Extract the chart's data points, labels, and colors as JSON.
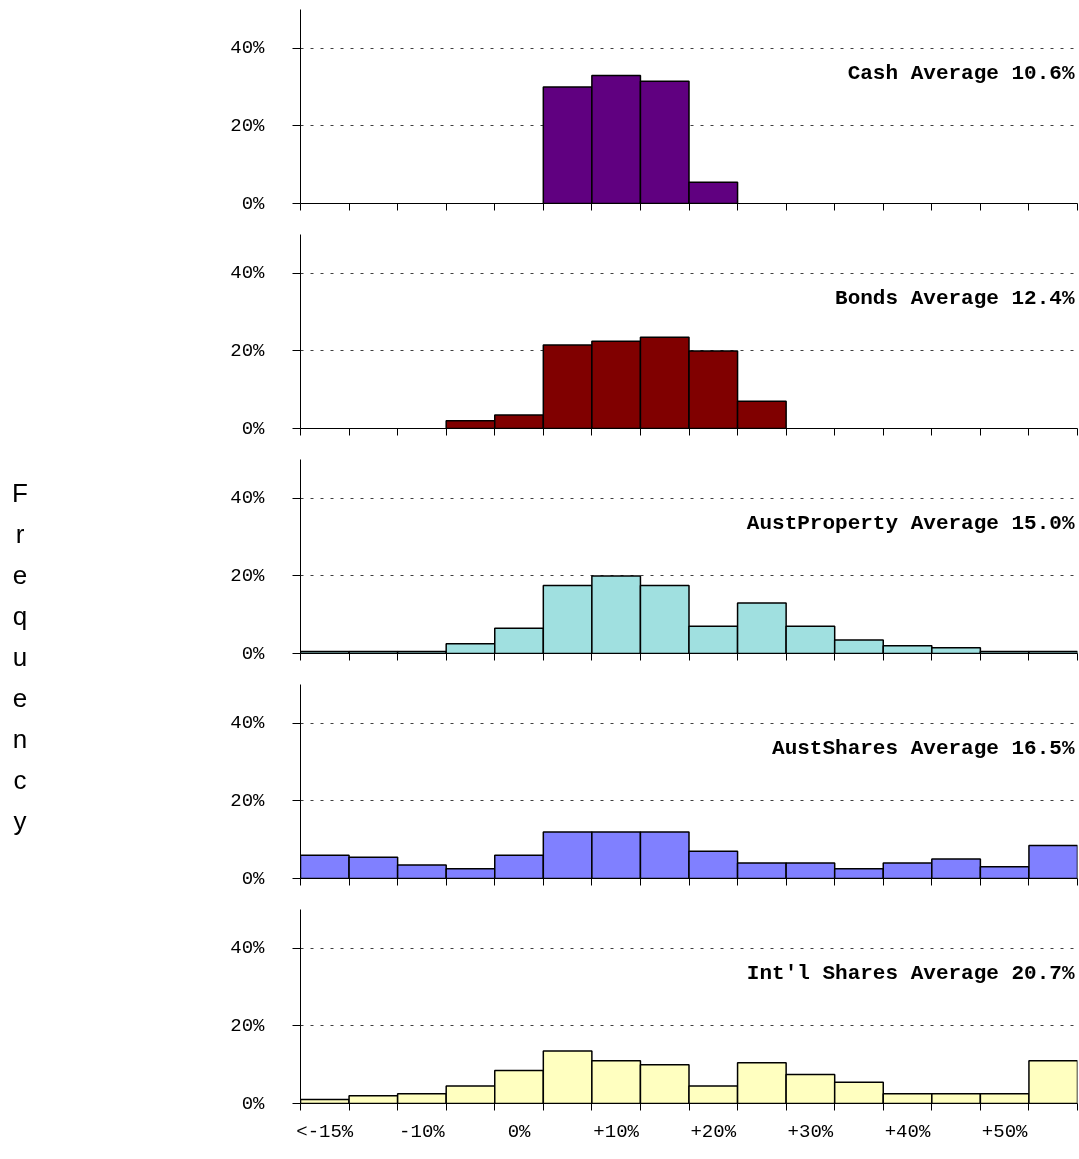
{
  "chart_data": [
    {
      "type": "bar",
      "title": "Cash Average 10.6%",
      "categories": [
        null,
        null,
        null,
        null,
        null,
        null,
        null,
        null,
        null,
        null,
        null,
        null,
        null,
        null,
        null,
        null
      ],
      "values": [
        null,
        null,
        null,
        null,
        null,
        30,
        33,
        31.5,
        5.5,
        null,
        null,
        null,
        null,
        null,
        null,
        null
      ],
      "color": "#600080",
      "ylim": [
        0,
        50
      ],
      "yticks": [
        {
          "value": 0,
          "label": "0%"
        },
        {
          "value": 20,
          "label": "20%"
        },
        {
          "value": 40,
          "label": "40%"
        }
      ],
      "grid": "y",
      "tick_labels": "y"
    },
    {
      "type": "bar",
      "title": "Bonds Average 12.4%",
      "categories": [
        null,
        null,
        null,
        null,
        null,
        null,
        null,
        null,
        null,
        null,
        null,
        null,
        null,
        null,
        null,
        null
      ],
      "values": [
        null,
        null,
        null,
        2,
        3.5,
        21.5,
        22.5,
        23.5,
        20,
        7,
        null,
        null,
        null,
        null,
        null,
        null
      ],
      "color": "#800000",
      "ylim": [
        0,
        50
      ],
      "yticks": [
        {
          "value": 0,
          "label": "0%"
        },
        {
          "value": 20,
          "label": "20%"
        },
        {
          "value": 40,
          "label": "40%"
        }
      ],
      "grid": "y",
      "tick_labels": "y"
    },
    {
      "type": "bar",
      "title": "AustProperty Average 15.0%",
      "ylabel": "Frequency",
      "categories": [
        null,
        null,
        null,
        null,
        null,
        null,
        null,
        null,
        null,
        null,
        null,
        null,
        null,
        null,
        null,
        null
      ],
      "values": [
        0.5,
        0.5,
        0.5,
        2.5,
        6.5,
        17.5,
        20,
        17.5,
        7,
        13,
        7,
        3.5,
        2,
        1.5,
        0.5,
        0.5
      ],
      "color": "#a0e0e0",
      "ylim": [
        0,
        50
      ],
      "yticks": [
        {
          "value": 0,
          "label": "0%"
        },
        {
          "value": 20,
          "label": "20%"
        },
        {
          "value": 40,
          "label": "40%"
        }
      ],
      "grid": "y",
      "tick_labels": "y"
    },
    {
      "type": "bar",
      "title": "AustShares Average 16.5%",
      "categories": [
        null,
        null,
        null,
        null,
        null,
        null,
        null,
        null,
        null,
        null,
        null,
        null,
        null,
        null,
        null,
        null
      ],
      "values": [
        6,
        5.5,
        3.5,
        2.5,
        6,
        12,
        12,
        12,
        7,
        4,
        4,
        2.5,
        4,
        5,
        3,
        8.5
      ],
      "color": "#8080ff",
      "ylim": [
        0,
        50
      ],
      "yticks": [
        {
          "value": 0,
          "label": "0%"
        },
        {
          "value": 20,
          "label": "20%"
        },
        {
          "value": 40,
          "label": "40%"
        }
      ],
      "grid": "y",
      "tick_labels": "y"
    },
    {
      "type": "bar",
      "title": "Int'l Shares Average 20.7%",
      "categories": [
        "<-15%",
        null,
        "-10%",
        null,
        "0%",
        null,
        "+10%",
        null,
        "+20%",
        null,
        "+30%",
        null,
        "+40%",
        null,
        "+50%",
        null
      ],
      "values": [
        1,
        2,
        2.5,
        4.5,
        8.5,
        13.5,
        11,
        10,
        4.5,
        10.5,
        7.5,
        5.5,
        2.5,
        2.5,
        2.5,
        11
      ],
      "color": "#ffffc0",
      "ylim": [
        0,
        50
      ],
      "yticks": [
        {
          "value": 0,
          "label": "0%"
        },
        {
          "value": 20,
          "label": "20%"
        },
        {
          "value": 40,
          "label": "40%"
        }
      ],
      "grid": "y"
    }
  ]
}
